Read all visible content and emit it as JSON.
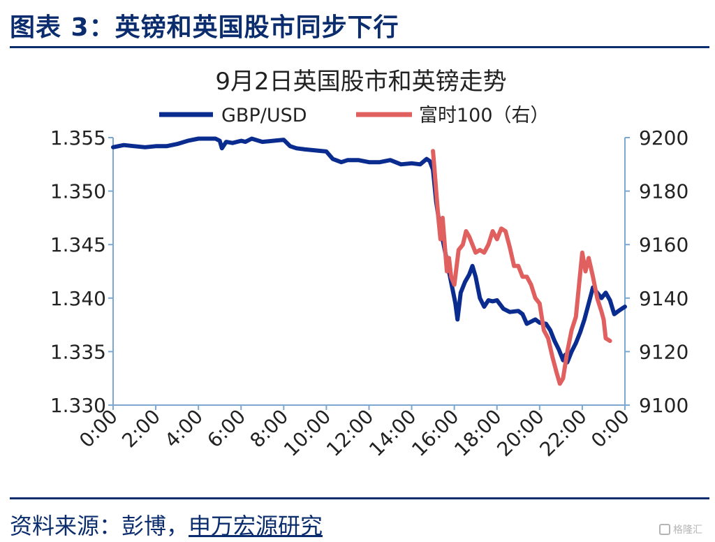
{
  "figure": {
    "label": "图表 3：英镑和英国股市同步下行",
    "source_prefix": "资料来源：彭博，",
    "source_publisher": "申万宏源研究",
    "watermark": "格隆汇"
  },
  "chart_data": {
    "type": "line",
    "title": "9月2日英国股市和英镑走势",
    "legend_position": "top",
    "grid": false,
    "x_tick_labels": [
      "0:00",
      "2:00",
      "4:00",
      "6:00",
      "8:00",
      "10:00",
      "12:00",
      "14:00",
      "16:00",
      "18:00",
      "20:00",
      "22:00",
      "0:00"
    ],
    "x_unit": "hours",
    "x_range": [
      0,
      24
    ],
    "y_left": {
      "ticks": [
        "1.330",
        "1.335",
        "1.340",
        "1.345",
        "1.350",
        "1.355"
      ],
      "range": [
        1.33,
        1.355
      ]
    },
    "y_right": {
      "ticks": [
        "9100",
        "9120",
        "9140",
        "9160",
        "9180",
        "9200"
      ],
      "range": [
        9100,
        9200
      ]
    },
    "series": [
      {
        "name": "GBP/USD",
        "axis": "left",
        "color": "#0b2c8f",
        "points": [
          [
            0.0,
            1.3541
          ],
          [
            0.5,
            1.3543
          ],
          [
            1.0,
            1.3542
          ],
          [
            1.5,
            1.3541
          ],
          [
            2.0,
            1.3542
          ],
          [
            2.5,
            1.3542
          ],
          [
            3.0,
            1.3544
          ],
          [
            3.5,
            1.3547
          ],
          [
            4.0,
            1.3549
          ],
          [
            4.5,
            1.3549
          ],
          [
            4.8,
            1.3549
          ],
          [
            5.0,
            1.3547
          ],
          [
            5.1,
            1.354
          ],
          [
            5.3,
            1.3546
          ],
          [
            5.6,
            1.3545
          ],
          [
            6.0,
            1.3547
          ],
          [
            6.2,
            1.3546
          ],
          [
            6.5,
            1.3549
          ],
          [
            7.0,
            1.3546
          ],
          [
            7.5,
            1.3547
          ],
          [
            8.0,
            1.3548
          ],
          [
            8.3,
            1.3542
          ],
          [
            8.6,
            1.354
          ],
          [
            9.0,
            1.3539
          ],
          [
            9.5,
            1.3538
          ],
          [
            10.0,
            1.3537
          ],
          [
            10.3,
            1.353
          ],
          [
            10.7,
            1.3527
          ],
          [
            11.0,
            1.3529
          ],
          [
            11.5,
            1.3529
          ],
          [
            12.0,
            1.3527
          ],
          [
            12.5,
            1.3527
          ],
          [
            13.0,
            1.3529
          ],
          [
            13.5,
            1.3525
          ],
          [
            14.0,
            1.3526
          ],
          [
            14.4,
            1.3525
          ],
          [
            14.7,
            1.353
          ],
          [
            14.85,
            1.3528
          ],
          [
            15.0,
            1.352
          ],
          [
            15.15,
            1.349
          ],
          [
            15.3,
            1.347
          ],
          [
            15.45,
            1.3455
          ],
          [
            15.6,
            1.344
          ],
          [
            15.75,
            1.3425
          ],
          [
            15.9,
            1.341
          ],
          [
            16.0,
            1.34
          ],
          [
            16.05,
            1.3395
          ],
          [
            16.15,
            1.338
          ],
          [
            16.3,
            1.3405
          ],
          [
            16.5,
            1.3415
          ],
          [
            16.7,
            1.3422
          ],
          [
            16.85,
            1.343
          ],
          [
            17.0,
            1.342
          ],
          [
            17.2,
            1.34
          ],
          [
            17.4,
            1.3392
          ],
          [
            17.6,
            1.3398
          ],
          [
            17.8,
            1.3397
          ],
          [
            18.0,
            1.3398
          ],
          [
            18.3,
            1.339
          ],
          [
            18.6,
            1.3387
          ],
          [
            19.0,
            1.3388
          ],
          [
            19.2,
            1.3385
          ],
          [
            19.4,
            1.3376
          ],
          [
            19.6,
            1.3378
          ],
          [
            19.8,
            1.338
          ],
          [
            20.0,
            1.3377
          ],
          [
            20.3,
            1.3376
          ],
          [
            20.5,
            1.337
          ],
          [
            20.7,
            1.336
          ],
          [
            20.9,
            1.3352
          ],
          [
            21.1,
            1.3342
          ],
          [
            21.2,
            1.3347
          ],
          [
            21.3,
            1.334
          ],
          [
            21.5,
            1.335
          ],
          [
            21.7,
            1.3358
          ],
          [
            21.9,
            1.3368
          ],
          [
            22.1,
            1.338
          ],
          [
            22.3,
            1.3395
          ],
          [
            22.5,
            1.341
          ],
          [
            22.7,
            1.3405
          ],
          [
            22.9,
            1.34
          ],
          [
            23.1,
            1.3405
          ],
          [
            23.3,
            1.3398
          ],
          [
            23.5,
            1.3385
          ],
          [
            23.7,
            1.3388
          ],
          [
            23.85,
            1.339
          ],
          [
            24.0,
            1.3392
          ]
        ]
      },
      {
        "name": "富时100（右）",
        "axis": "right",
        "color": "#e06060",
        "points": [
          [
            15.0,
            9195
          ],
          [
            15.05,
            9190
          ],
          [
            15.15,
            9180
          ],
          [
            15.25,
            9170
          ],
          [
            15.35,
            9162
          ],
          [
            15.45,
            9170
          ],
          [
            15.55,
            9160
          ],
          [
            15.65,
            9150
          ],
          [
            15.75,
            9155
          ],
          [
            15.85,
            9148
          ],
          [
            16.0,
            9145
          ],
          [
            16.2,
            9158
          ],
          [
            16.4,
            9160
          ],
          [
            16.55,
            9165
          ],
          [
            16.7,
            9163
          ],
          [
            16.85,
            9160
          ],
          [
            17.0,
            9157
          ],
          [
            17.2,
            9158
          ],
          [
            17.4,
            9157
          ],
          [
            17.6,
            9160
          ],
          [
            17.8,
            9165
          ],
          [
            18.0,
            9162
          ],
          [
            18.2,
            9166
          ],
          [
            18.4,
            9165
          ],
          [
            18.6,
            9159
          ],
          [
            18.8,
            9152
          ],
          [
            19.0,
            9152
          ],
          [
            19.2,
            9148
          ],
          [
            19.4,
            9148
          ],
          [
            19.6,
            9145
          ],
          [
            19.8,
            9140
          ],
          [
            20.0,
            9138
          ],
          [
            20.2,
            9128
          ],
          [
            20.4,
            9125
          ],
          [
            20.6,
            9118
          ],
          [
            20.8,
            9112
          ],
          [
            20.95,
            9108
          ],
          [
            21.1,
            9110
          ],
          [
            21.3,
            9120
          ],
          [
            21.5,
            9128
          ],
          [
            21.7,
            9133
          ],
          [
            21.85,
            9145
          ],
          [
            22.0,
            9157
          ],
          [
            22.15,
            9150
          ],
          [
            22.3,
            9155
          ],
          [
            22.5,
            9148
          ],
          [
            22.7,
            9140
          ],
          [
            22.9,
            9135
          ],
          [
            23.0,
            9132
          ],
          [
            23.1,
            9125
          ],
          [
            23.3,
            9124
          ]
        ]
      }
    ]
  }
}
